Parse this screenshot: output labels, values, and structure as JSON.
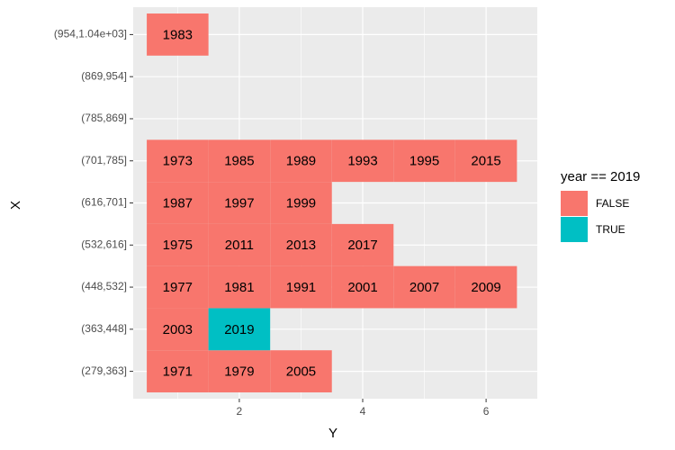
{
  "chart_data": {
    "type": "tile",
    "x_label": "Y",
    "y_label": "X",
    "categories": [
      "(279,363]",
      "(363,448]",
      "(448,532]",
      "(532,616]",
      "(616,701]",
      "(701,785]",
      "(785,869]",
      "(869,954]",
      "(954,1.04e+03]"
    ],
    "rows": [
      {
        "x": [
          1,
          2,
          3
        ],
        "labels": [
          1971,
          1979,
          2005
        ],
        "fill": [
          "FALSE",
          "FALSE",
          "FALSE"
        ]
      },
      {
        "x": [
          1,
          2
        ],
        "labels": [
          2003,
          2019
        ],
        "fill": [
          "FALSE",
          "TRUE"
        ]
      },
      {
        "x": [
          1,
          2,
          3,
          4,
          5,
          6
        ],
        "labels": [
          1977,
          1981,
          1991,
          2001,
          2007,
          2009
        ],
        "fill": [
          "FALSE",
          "FALSE",
          "FALSE",
          "FALSE",
          "FALSE",
          "FALSE"
        ]
      },
      {
        "x": [
          1,
          2,
          3,
          4
        ],
        "labels": [
          1975,
          2011,
          2013,
          2017
        ],
        "fill": [
          "FALSE",
          "FALSE",
          "FALSE",
          "FALSE"
        ]
      },
      {
        "x": [
          1,
          2,
          3
        ],
        "labels": [
          1987,
          1997,
          1999
        ],
        "fill": [
          "FALSE",
          "FALSE",
          "FALSE"
        ]
      },
      {
        "x": [
          1,
          2,
          3,
          4,
          5,
          6
        ],
        "labels": [
          1973,
          1985,
          1989,
          1993,
          1995,
          2015
        ],
        "fill": [
          "FALSE",
          "FALSE",
          "FALSE",
          "FALSE",
          "FALSE",
          "FALSE"
        ]
      },
      {
        "x": [],
        "labels": [],
        "fill": []
      },
      {
        "x": [],
        "labels": [],
        "fill": []
      },
      {
        "x": [
          1
        ],
        "labels": [
          1983
        ],
        "fill": [
          "FALSE"
        ]
      }
    ],
    "legend_title": "year == 2019",
    "series": [
      {
        "name": "FALSE",
        "color": "#F8766D"
      },
      {
        "name": "TRUE",
        "color": "#00BFC4"
      }
    ],
    "xlim": [
      0.28,
      6.83
    ],
    "xticks": [
      2,
      4,
      6
    ],
    "xminor_ticks": [
      1,
      3,
      5
    ],
    "grid": true
  }
}
